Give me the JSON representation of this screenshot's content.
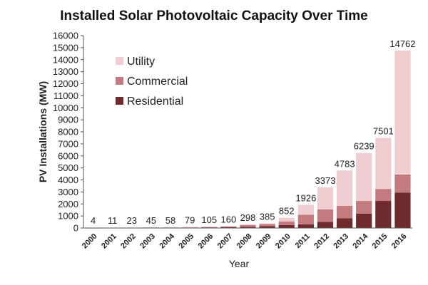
{
  "chart_data": {
    "type": "bar",
    "stacked": true,
    "title": "Installed Solar Photovoltaic Capacity Over Time",
    "xlabel": "Year",
    "ylabel": "PV Installations (MW)",
    "ylim": [
      0,
      16000
    ],
    "yticks": [
      0,
      1000,
      2000,
      3000,
      4000,
      5000,
      6000,
      7000,
      8000,
      9000,
      10000,
      11000,
      12000,
      13000,
      14000,
      15000,
      16000
    ],
    "grid": false,
    "legend": "top-left",
    "categories": [
      "2000",
      "2001",
      "2002",
      "2003",
      "2004",
      "2005",
      "2006",
      "2007",
      "2008",
      "2009",
      "2010",
      "2011",
      "2012",
      "2013",
      "2014",
      "2015",
      "2016"
    ],
    "totals": [
      4,
      11,
      23,
      45,
      58,
      79,
      105,
      160,
      298,
      385,
      852,
      1926,
      3373,
      4783,
      6239,
      7501,
      14762
    ],
    "series": [
      {
        "name": "Residential",
        "color": "#6e2a2d",
        "values": [
          2,
          5,
          12,
          25,
          30,
          40,
          50,
          70,
          100,
          160,
          250,
          300,
          500,
          800,
          1200,
          2250,
          2950
        ]
      },
      {
        "name": "Commercial",
        "color": "#c47b7f",
        "values": [
          2,
          5,
          10,
          18,
          25,
          35,
          45,
          70,
          150,
          170,
          300,
          800,
          1050,
          1050,
          1050,
          1000,
          1500
        ]
      },
      {
        "name": "Utility",
        "color": "#efcdd0",
        "values": [
          0,
          1,
          1,
          2,
          3,
          4,
          10,
          20,
          48,
          55,
          302,
          826,
          1823,
          2933,
          3989,
          4251,
          10312
        ]
      }
    ],
    "legend_order": [
      "Utility",
      "Commercial",
      "Residential"
    ]
  }
}
